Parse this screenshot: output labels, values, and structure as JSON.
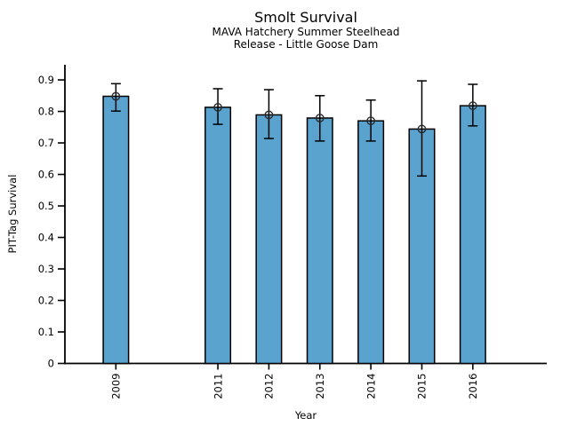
{
  "chart_data": {
    "type": "bar",
    "title": "Smolt Survival",
    "subtitle_lines": [
      "MAVA Hatchery Summer Steelhead",
      "Release - Little Goose Dam"
    ],
    "xlabel": "Year",
    "ylabel": "PIT-Tag Survival",
    "categories": [
      2009,
      2011,
      2012,
      2013,
      2014,
      2015,
      2016
    ],
    "values": [
      0.848,
      0.813,
      0.789,
      0.779,
      0.77,
      0.744,
      0.818
    ],
    "error_low": [
      0.801,
      0.759,
      0.714,
      0.706,
      0.706,
      0.595,
      0.754
    ],
    "error_high": [
      0.888,
      0.872,
      0.869,
      0.85,
      0.836,
      0.897,
      0.886
    ],
    "note_missing_year": 2010,
    "xlim": [
      2008.0,
      2017.45
    ],
    "ylim": [
      0,
      0.948
    ],
    "yticks": [
      0,
      0.1,
      0.2,
      0.3,
      0.4,
      0.5,
      0.6,
      0.7,
      0.8,
      0.9
    ],
    "ytick_labels": [
      "0",
      "0.1",
      "0.2",
      "0.3",
      "0.4",
      "0.5",
      "0.6",
      "0.7",
      "0.8",
      "0.9"
    ],
    "grid": false,
    "legend": "none",
    "bar_color": "#5BA3CF",
    "bar_edge_color": "#000000",
    "error_color": "#000000",
    "marker": "open-circle",
    "marker_color": "#2b2b2b",
    "background_color": "#ffffff"
  }
}
